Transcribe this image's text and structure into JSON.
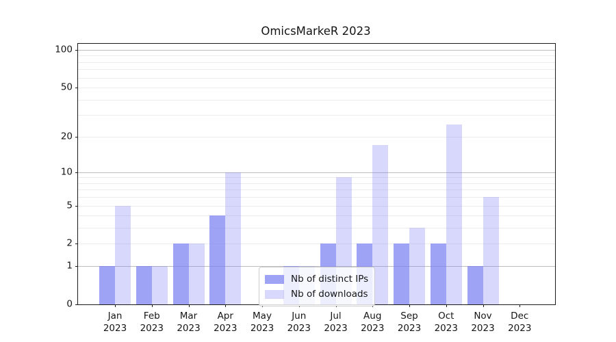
{
  "title": "OmicsMarkeR 2023",
  "chart_data": {
    "type": "bar",
    "title": "OmicsMarkeR 2023",
    "months": [
      "Jan",
      "Feb",
      "Mar",
      "Apr",
      "May",
      "Jun",
      "Jul",
      "Aug",
      "Sep",
      "Oct",
      "Nov",
      "Dec"
    ],
    "year": "2023",
    "series": [
      {
        "name": "Nb of distinct IPs",
        "color": "rgba(122,127,242,0.72)",
        "values": [
          1,
          1,
          2,
          4,
          0,
          1,
          2,
          2,
          2,
          2,
          1,
          0
        ]
      },
      {
        "name": "Nb of downloads",
        "color": "rgba(122,127,242,0.30)",
        "values": [
          5,
          1,
          2,
          10,
          0,
          1,
          9,
          17,
          3,
          25,
          6,
          0
        ]
      }
    ],
    "yscale": "log1p",
    "ylim": [
      0,
      112
    ],
    "yticks": [
      0,
      1,
      2,
      5,
      10,
      20,
      50,
      100
    ],
    "major_gridlines": [
      1,
      10,
      100
    ],
    "minor_gridlines": [
      2,
      3,
      4,
      5,
      6,
      7,
      8,
      9,
      20,
      30,
      40,
      50,
      60,
      70,
      80,
      90
    ],
    "legend_position": "lower center",
    "colors": {
      "bar_base": "#7a7ff2",
      "grid_major": "#bdbdbd",
      "grid_minor": "#ececec",
      "spine": "#1a1a1a"
    }
  }
}
